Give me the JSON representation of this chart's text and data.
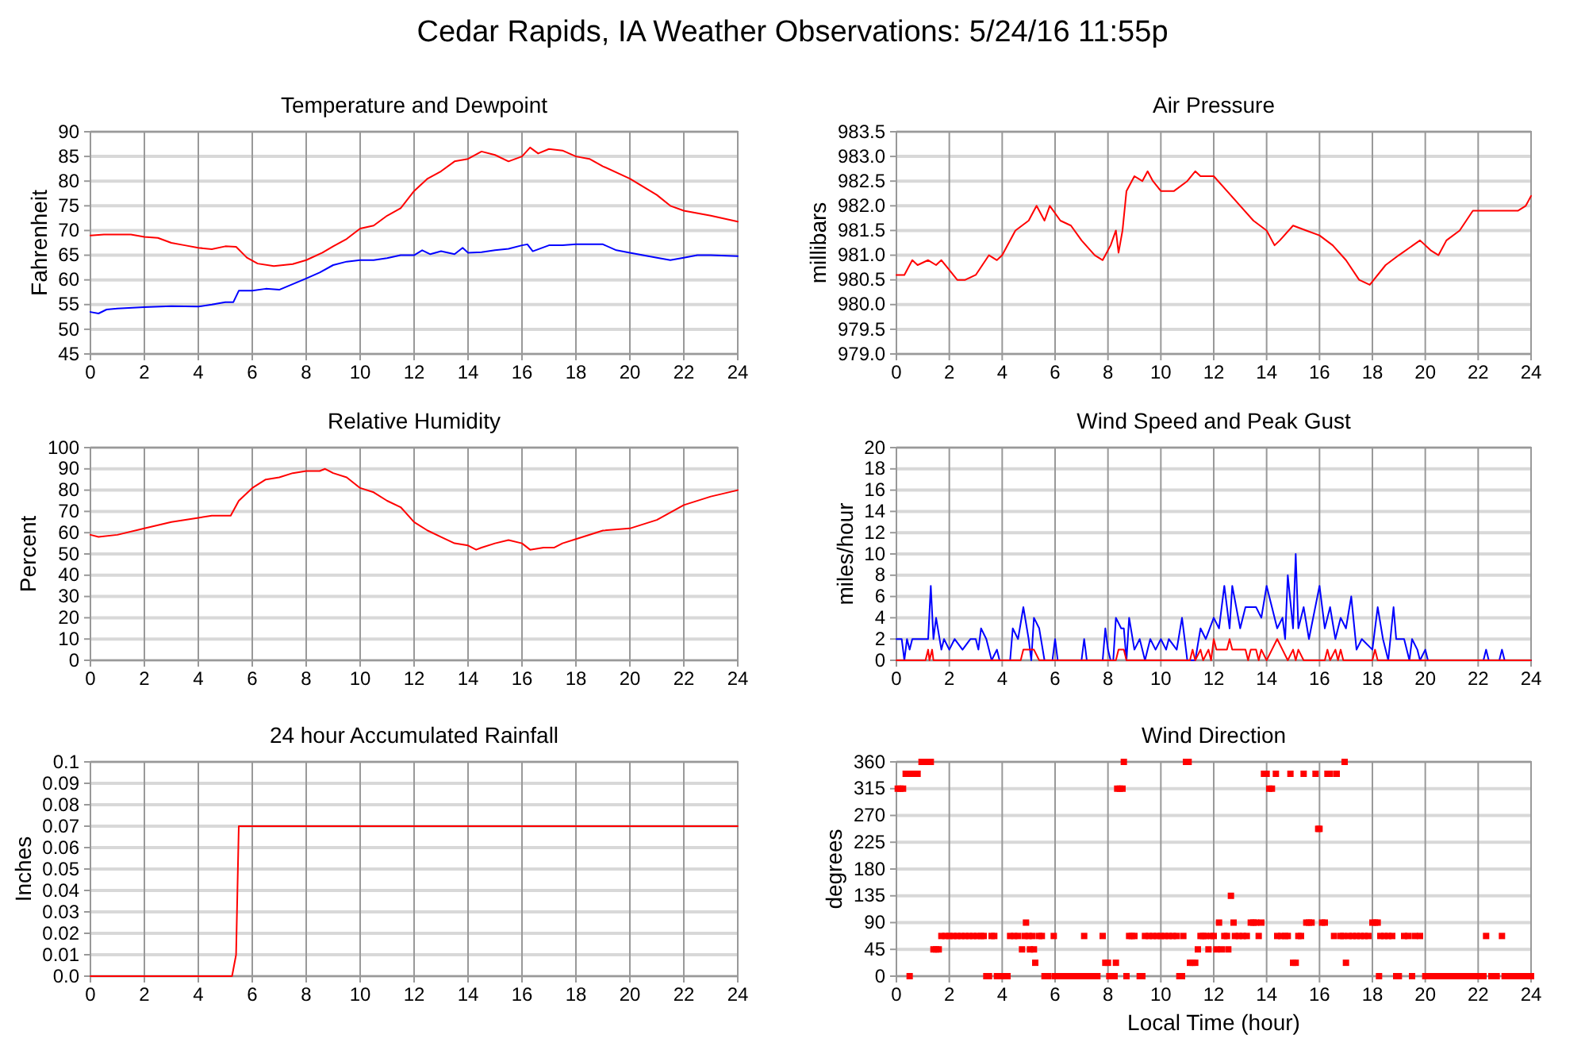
{
  "chart_data": [
    {
      "type": "line",
      "title": "Temperature and Dewpoint",
      "ylabel": "Fahrenheit",
      "annotations": [
        "Cedar Rapids, IA Weather Observations: 5/24/16 11:55p"
      ],
      "xlim": [
        0,
        24
      ],
      "xticks": [
        0,
        2,
        4,
        6,
        8,
        10,
        12,
        14,
        16,
        18,
        20,
        22,
        24
      ],
      "ylim": [
        45,
        90
      ],
      "yticks": [
        45,
        50,
        55,
        60,
        65,
        70,
        75,
        80,
        85,
        90
      ],
      "grid": true,
      "line_style": "solid",
      "series": [
        {
          "color": "#ff0000",
          "x": [
            0,
            0.5,
            1,
            1.5,
            2,
            2.5,
            3,
            3.5,
            4,
            4.5,
            5,
            5.4,
            5.8,
            6.2,
            6.8,
            7.5,
            8,
            8.6,
            9,
            9.5,
            10,
            10.5,
            11,
            11.5,
            12,
            12.5,
            13,
            13.5,
            14,
            14.5,
            15,
            15.5,
            16,
            16.3,
            16.6,
            17,
            17.5,
            18,
            18.5,
            19,
            20,
            21,
            21.5,
            22,
            23,
            24
          ],
          "values": [
            69,
            69.2,
            69.2,
            69.2,
            68.7,
            68.5,
            67.5,
            67,
            66.5,
            66.2,
            66.8,
            66.7,
            64.5,
            63.3,
            62.8,
            63.2,
            64,
            65.5,
            66.8,
            68.3,
            70.4,
            71,
            73,
            74.5,
            78,
            80.5,
            82,
            84,
            84.5,
            86,
            85.3,
            84,
            85,
            86.8,
            85.6,
            86.5,
            86.2,
            85,
            84.5,
            83,
            80.5,
            77.2,
            75,
            74,
            73,
            71.8
          ]
        },
        {
          "color": "#0000ff",
          "x": [
            0,
            0.3,
            0.6,
            1,
            2,
            3,
            4,
            4.5,
            5,
            5.3,
            5.5,
            6,
            6.5,
            7,
            8,
            8.5,
            9,
            9.5,
            10,
            10.5,
            11,
            11.5,
            12,
            12.3,
            12.6,
            13,
            13.5,
            13.8,
            14,
            14.5,
            15,
            15.5,
            16,
            16.2,
            16.4,
            17,
            17.5,
            18,
            18.5,
            19,
            19.5,
            20,
            21,
            21.5,
            22,
            22.5,
            23,
            24
          ],
          "values": [
            53.5,
            53.2,
            54,
            54.2,
            54.5,
            54.7,
            54.6,
            55,
            55.5,
            55.5,
            57.8,
            57.8,
            58.2,
            58,
            60.3,
            61.5,
            63,
            63.7,
            64,
            64,
            64.4,
            65,
            65,
            66,
            65.2,
            65.8,
            65.2,
            66.5,
            65.5,
            65.6,
            66,
            66.3,
            67,
            67.2,
            65.8,
            67,
            67,
            67.2,
            67.2,
            67.2,
            66,
            65.5,
            64.5,
            64,
            64.5,
            65,
            65,
            64.8
          ]
        }
      ]
    },
    {
      "type": "line",
      "title": "Air Pressure",
      "ylabel": "millibars",
      "xlim": [
        0,
        24
      ],
      "xticks": [
        0,
        2,
        4,
        6,
        8,
        10,
        12,
        14,
        16,
        18,
        20,
        22,
        24
      ],
      "ylim": [
        979,
        983.5
      ],
      "yticks": [
        {
          "value": 979,
          "label": "979.0"
        },
        979.5,
        {
          "value": 980,
          "label": "980.0"
        },
        980.5,
        {
          "value": 981,
          "label": "981.0"
        },
        981.5,
        {
          "value": 982,
          "label": "982.0"
        },
        982.5,
        {
          "value": 983,
          "label": "983.0"
        },
        983.5
      ],
      "grid": true,
      "line_style": "solid",
      "series": [
        {
          "color": "#ff0000",
          "x": [
            0,
            0.3,
            0.6,
            0.8,
            1.2,
            1.5,
            1.7,
            2,
            2.3,
            2.6,
            3,
            3.5,
            3.8,
            4,
            4.5,
            5,
            5.3,
            5.6,
            5.8,
            6.2,
            6.6,
            7,
            7.5,
            7.8,
            8.1,
            8.3,
            8.4,
            8.55,
            8.7,
            9,
            9.3,
            9.5,
            9.7,
            10,
            10.5,
            11,
            11.3,
            11.5,
            12,
            12.5,
            13,
            13.5,
            14,
            14.3,
            14.5,
            15,
            15.5,
            16,
            16.5,
            17,
            17.5,
            17.9,
            18.5,
            19,
            19.8,
            20.2,
            20.5,
            20.8,
            21.3,
            21.8,
            22.5,
            23,
            23.5,
            23.8,
            24
          ],
          "values": [
            980.6,
            980.6,
            980.9,
            980.8,
            980.9,
            980.8,
            980.9,
            980.7,
            980.5,
            980.5,
            980.6,
            981,
            980.9,
            981,
            981.5,
            981.7,
            982,
            981.7,
            982,
            981.7,
            981.6,
            981.3,
            981,
            980.9,
            981.2,
            981.5,
            981.05,
            981.5,
            982.3,
            982.6,
            982.5,
            982.7,
            982.5,
            982.3,
            982.3,
            982.5,
            982.7,
            982.6,
            982.6,
            982.3,
            982,
            981.7,
            981.5,
            981.2,
            981.3,
            981.6,
            981.5,
            981.4,
            981.2,
            980.9,
            980.5,
            980.4,
            980.8,
            981,
            981.3,
            981.1,
            981,
            981.3,
            981.5,
            981.9,
            981.9,
            981.9,
            981.9,
            982,
            982.2
          ]
        }
      ]
    },
    {
      "type": "line",
      "title": "Relative Humidity",
      "ylabel": "Percent",
      "xlim": [
        0,
        24
      ],
      "xticks": [
        0,
        2,
        4,
        6,
        8,
        10,
        12,
        14,
        16,
        18,
        20,
        22,
        24
      ],
      "ylim": [
        0,
        100
      ],
      "yticks": [
        0,
        10,
        20,
        30,
        40,
        50,
        60,
        70,
        80,
        90,
        100
      ],
      "grid": true,
      "line_style": "solid",
      "series": [
        {
          "color": "#ff0000",
          "x": [
            0,
            0.3,
            1,
            2,
            3,
            4,
            4.5,
            5.2,
            5.5,
            6,
            6.5,
            7,
            7.5,
            8,
            8.5,
            8.7,
            9,
            9.5,
            10,
            10.5,
            11,
            11.5,
            12,
            12.5,
            13,
            13.5,
            14,
            14.3,
            14.5,
            15,
            15.5,
            16,
            16.3,
            16.8,
            17.2,
            17.5,
            18,
            19,
            20,
            21,
            22,
            23,
            24
          ],
          "values": [
            59,
            58,
            59,
            62,
            65,
            67,
            68,
            68,
            75,
            81,
            85,
            86,
            88,
            89,
            89,
            90,
            88,
            86,
            81,
            79,
            75,
            72,
            65,
            61,
            58,
            55,
            54,
            52,
            53,
            55,
            56.5,
            55,
            52,
            53,
            53,
            55,
            57,
            61,
            62,
            66,
            73,
            77,
            80
          ]
        }
      ]
    },
    {
      "type": "line",
      "title": "Wind Speed and Peak Gust",
      "ylabel": "miles/hour",
      "xlim": [
        0,
        24
      ],
      "xticks": [
        0,
        2,
        4,
        6,
        8,
        10,
        12,
        14,
        16,
        18,
        20,
        22,
        24
      ],
      "ylim": [
        0,
        20
      ],
      "yticks": [
        0,
        2,
        4,
        6,
        8,
        10,
        12,
        14,
        16,
        18,
        20
      ],
      "grid": true,
      "line_style": "solid",
      "series": [
        {
          "color": "#0000ff",
          "x": [
            0,
            0.2,
            0.3,
            0.4,
            0.5,
            0.6,
            1.2,
            1.3,
            1.4,
            1.5,
            1.7,
            1.8,
            2,
            2.2,
            2.5,
            2.8,
            3,
            3.1,
            3.2,
            3.4,
            3.5,
            3.6,
            3.8,
            3.9,
            4.3,
            4.4,
            4.6,
            4.8,
            5,
            5.1,
            5.2,
            5.4,
            5.6,
            5.9,
            6,
            6.1,
            7,
            7.1,
            7.2,
            7.8,
            7.9,
            8,
            8.1,
            8.2,
            8.3,
            8.5,
            8.6,
            8.7,
            8.8,
            9,
            9.2,
            9.4,
            9.5,
            9.6,
            9.8,
            10,
            10.2,
            10.3,
            10.6,
            10.8,
            11,
            11.3,
            11.5,
            11.7,
            12,
            12.2,
            12.4,
            12.6,
            12.7,
            13,
            13.2,
            13.6,
            13.8,
            14,
            14.2,
            14.4,
            14.6,
            14.7,
            14.8,
            15,
            15.1,
            15.2,
            15.4,
            15.6,
            16,
            16.2,
            16.4,
            16.6,
            16.8,
            17,
            17.2,
            17.4,
            17.6,
            18,
            18.2,
            18.4,
            18.6,
            18.8,
            18.9,
            19.2,
            19.4,
            19.5,
            19.7,
            19.8,
            20,
            20.1,
            22.2,
            22.3,
            22.4,
            22.8,
            22.9,
            23,
            24
          ],
          "values": [
            2,
            2,
            0,
            2,
            1,
            2,
            2,
            7,
            2,
            4,
            1,
            2,
            1,
            2,
            1,
            2,
            2,
            1,
            3,
            2,
            1,
            0,
            1,
            0,
            0,
            3,
            2,
            5,
            2,
            0,
            4,
            3,
            0,
            0,
            2,
            0,
            0,
            2,
            0,
            0,
            3,
            1,
            0,
            0,
            4,
            3,
            3,
            0,
            4,
            1,
            2,
            0,
            1,
            2,
            1,
            2,
            1,
            2,
            1,
            4,
            0,
            0,
            3,
            2,
            4,
            3,
            7,
            3,
            7,
            3,
            5,
            5,
            4,
            7,
            5,
            3,
            4,
            2,
            8,
            3,
            10,
            3,
            5,
            2,
            7,
            3,
            5,
            2,
            4,
            3,
            6,
            1,
            2,
            1,
            5,
            2,
            0,
            5,
            2,
            2,
            0,
            2,
            1,
            0,
            1,
            0,
            0,
            1,
            0,
            0,
            1,
            0,
            0
          ]
        },
        {
          "color": "#ff0000",
          "x": [
            0,
            1.1,
            1.2,
            1.25,
            1.35,
            1.4,
            4.7,
            4.8,
            5,
            5.2,
            5.4,
            8.3,
            8.4,
            8.6,
            8.7,
            11.1,
            11.2,
            11.3,
            11.5,
            11.6,
            11.8,
            11.9,
            12,
            12.1,
            12.5,
            12.6,
            12.7,
            13.2,
            13.3,
            13.4,
            13.6,
            13.7,
            13.8,
            14,
            14.2,
            14.4,
            14.6,
            14.8,
            15,
            15.1,
            15.2,
            15.4,
            16.2,
            16.3,
            16.4,
            16.6,
            16.7,
            16.8,
            16.9,
            18,
            18.1,
            18.2,
            24
          ],
          "values": [
            0,
            0,
            1,
            0,
            1,
            0,
            0,
            1,
            1,
            1,
            0,
            0,
            1,
            1,
            0,
            0,
            1,
            0,
            1,
            0,
            1,
            0,
            2,
            1,
            1,
            2,
            1,
            1,
            0,
            1,
            1,
            0,
            1,
            0,
            1,
            2,
            1,
            0,
            1,
            0,
            1,
            0,
            0,
            1,
            0,
            1,
            0,
            1,
            0,
            0,
            1,
            0,
            0
          ]
        }
      ]
    },
    {
      "type": "line",
      "title": "24 hour Accumulated Rainfall",
      "ylabel": "Inches",
      "xlim": [
        0,
        24
      ],
      "xticks": [
        0,
        2,
        4,
        6,
        8,
        10,
        12,
        14,
        16,
        18,
        20,
        22,
        24
      ],
      "ylim": [
        0,
        0.1
      ],
      "yticks": [
        {
          "value": 0,
          "label": "0.0"
        },
        0.01,
        0.02,
        0.03,
        0.04,
        0.05,
        0.06,
        0.07,
        0.08,
        0.09,
        0.1
      ],
      "grid": true,
      "line_style": "solid",
      "series": [
        {
          "color": "#ff0000",
          "x": [
            0,
            5.25,
            5.4,
            5.5,
            24
          ],
          "values": [
            0,
            0,
            0.01,
            0.07,
            0.07
          ]
        }
      ]
    },
    {
      "type": "scatter",
      "title": "Wind Direction",
      "ylabel": "degrees",
      "xlabel": "Local Time (hour)",
      "xlim": [
        0,
        24
      ],
      "xticks": [
        0,
        2,
        4,
        6,
        8,
        10,
        12,
        14,
        16,
        18,
        20,
        22,
        24
      ],
      "ylim": [
        0,
        360
      ],
      "yticks": [
        0,
        45,
        90,
        135,
        180,
        225,
        270,
        315,
        360
      ],
      "grid": true,
      "marker": "square",
      "series": [
        {
          "color": "#ff0000",
          "x": [
            0.05,
            0.15,
            0.25,
            0.35,
            0.45,
            0.5,
            0.6,
            0.8,
            0.95,
            1.15,
            1.3,
            1.4,
            1.5,
            1.6,
            1.7,
            1.85,
            2,
            2.15,
            2.3,
            2.45,
            2.6,
            2.75,
            2.9,
            3.05,
            3.2,
            3.3,
            3.4,
            3.5,
            3.6,
            3.7,
            3.8,
            4,
            4.2,
            4.3,
            4.45,
            4.6,
            4.75,
            4.85,
            4.9,
            5,
            5.05,
            5.15,
            5.2,
            5.25,
            5.4,
            5.5,
            5.6,
            5.75,
            5.95,
            6,
            6.2,
            6.4,
            6.6,
            6.8,
            7,
            7.1,
            7.2,
            7.4,
            7.6,
            7.8,
            7.9,
            8,
            8.05,
            8.25,
            8.3,
            8.35,
            8.45,
            8.55,
            8.6,
            8.7,
            8.8,
            8.9,
            9,
            9.2,
            9.3,
            9.4,
            9.55,
            9.7,
            9.85,
            10,
            10.15,
            10.3,
            10.45,
            10.6,
            10.7,
            10.8,
            10.85,
            10.95,
            11.05,
            11.1,
            11.2,
            11.3,
            11.4,
            11.5,
            11.6,
            11.7,
            11.8,
            11.9,
            12,
            12.1,
            12.2,
            12.3,
            12.4,
            12.5,
            12.55,
            12.65,
            12.75,
            12.8,
            12.95,
            13.1,
            13.25,
            13.4,
            13.5,
            13.6,
            13.7,
            13.8,
            13.9,
            14,
            14.1,
            14.2,
            14.35,
            14.4,
            14.55,
            14.7,
            14.8,
            14.9,
            15,
            15.1,
            15.2,
            15.3,
            15.4,
            15.5,
            15.6,
            15.7,
            15.85,
            15.95,
            16,
            16.1,
            16.2,
            16.3,
            16.4,
            16.55,
            16.65,
            16.8,
            16.9,
            16.95,
            17,
            17.1,
            17.25,
            17.4,
            17.55,
            17.7,
            17.85,
            18,
            18.1,
            18.2,
            18.25,
            18.3,
            18.45,
            18.6,
            18.75,
            18.9,
            19,
            19.2,
            19.35,
            19.5,
            19.6,
            19.8,
            20,
            20.2,
            20.4,
            20.6,
            20.8,
            21,
            21.2,
            21.4,
            21.6,
            21.8,
            22,
            22.2,
            22.3,
            22.5,
            22.7,
            22.9,
            23,
            23.2,
            23.4,
            23.6,
            23.8,
            24
          ],
          "values": [
            315,
            315,
            315,
            340,
            340,
            0,
            340,
            340,
            360,
            360,
            360,
            45,
            45,
            45,
            67.5,
            67.5,
            67.5,
            67.5,
            67.5,
            67.5,
            67.5,
            67.5,
            67.5,
            67.5,
            67.5,
            67.5,
            0,
            0,
            67.5,
            67.5,
            0,
            0,
            0,
            67.5,
            67.5,
            67.5,
            45,
            67.5,
            90,
            67.5,
            45,
            67.5,
            45,
            22.5,
            67.5,
            67.5,
            0,
            0,
            67.5,
            0,
            0,
            0,
            0,
            0,
            0,
            67.5,
            0,
            0,
            0,
            67.5,
            22.5,
            22.5,
            0,
            0,
            22.5,
            315,
            315,
            315,
            360,
            0,
            67.5,
            67.5,
            67.5,
            0,
            0,
            67.5,
            67.5,
            67.5,
            67.5,
            67.5,
            67.5,
            67.5,
            67.5,
            67.5,
            0,
            0,
            67.5,
            360,
            360,
            22.5,
            22.5,
            22.5,
            45,
            67.5,
            67.5,
            67.5,
            45,
            67.5,
            67.5,
            45,
            90,
            45,
            67.5,
            67.5,
            45,
            135,
            90,
            67.5,
            67.5,
            67.5,
            67.5,
            90,
            90,
            90,
            67.5,
            90,
            340,
            340,
            315,
            315,
            340,
            67.5,
            67.5,
            67.5,
            67.5,
            340,
            22.5,
            22.5,
            67.5,
            67.5,
            340,
            90,
            90,
            90,
            340,
            247.5,
            247.5,
            90,
            90,
            340,
            340,
            67.5,
            340,
            67.5,
            67.5,
            360,
            22.5,
            67.5,
            67.5,
            67.5,
            67.5,
            67.5,
            67.5,
            90,
            90,
            90,
            0,
            67.5,
            67.5,
            67.5,
            67.5,
            0,
            0,
            67.5,
            67.5,
            0,
            67.5,
            67.5,
            0,
            0,
            0,
            0,
            0,
            0,
            0,
            0,
            0,
            0,
            0,
            0,
            67.5,
            0,
            0,
            67.5,
            0,
            0,
            0,
            0,
            0,
            0
          ]
        }
      ]
    }
  ]
}
